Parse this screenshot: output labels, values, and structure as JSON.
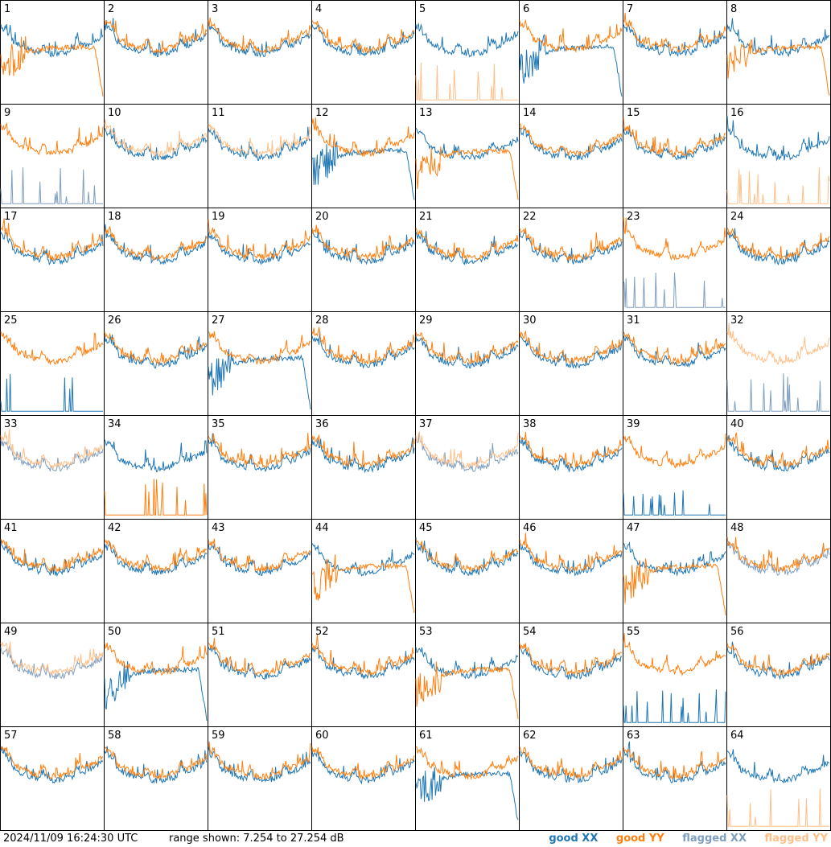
{
  "footer": {
    "timestamp": "2024/11/09 16:24:30 UTC",
    "range_text": "range shown: 7.254 to 27.254 dB"
  },
  "legend": [
    {
      "label": "good XX",
      "color": "#1f77b4"
    },
    {
      "label": "good YY",
      "color": "#ff7f0e"
    },
    {
      "label": "flagged XX",
      "color": "#7f9fbf"
    },
    {
      "label": "flagged YY",
      "color": "#ffbf88"
    }
  ],
  "chart_data": {
    "type": "line",
    "layout": "8x8 small multiples",
    "range_db": [
      7.254,
      27.254
    ],
    "panels": [
      {
        "id": 1,
        "xx": "good",
        "yy": "good",
        "xx_shape": "normal",
        "yy_shape": "decay"
      },
      {
        "id": 2,
        "xx": "good",
        "yy": "good",
        "xx_shape": "normal",
        "yy_shape": "normal"
      },
      {
        "id": 3,
        "xx": "good",
        "yy": "good",
        "xx_shape": "normal",
        "yy_shape": "normal"
      },
      {
        "id": 4,
        "xx": "good",
        "yy": "good",
        "xx_shape": "normal",
        "yy_shape": "normal"
      },
      {
        "id": 5,
        "xx": "good",
        "yy": "flagged",
        "xx_shape": "normal",
        "yy_shape": "spikes"
      },
      {
        "id": 6,
        "xx": "good",
        "yy": "good",
        "xx_shape": "decay",
        "yy_shape": "normal"
      },
      {
        "id": 7,
        "xx": "good",
        "yy": "good",
        "xx_shape": "normal",
        "yy_shape": "normal"
      },
      {
        "id": 8,
        "xx": "good",
        "yy": "good",
        "xx_shape": "normal",
        "yy_shape": "decay"
      },
      {
        "id": 9,
        "xx": "flagged",
        "yy": "good",
        "xx_shape": "spikes",
        "yy_shape": "normal"
      },
      {
        "id": 10,
        "xx": "good",
        "yy": "flagged",
        "xx_shape": "normal",
        "yy_shape": "normal"
      },
      {
        "id": 11,
        "xx": "good",
        "yy": "flagged",
        "xx_shape": "normal",
        "yy_shape": "normal"
      },
      {
        "id": 12,
        "xx": "good",
        "yy": "good",
        "xx_shape": "decay",
        "yy_shape": "normal"
      },
      {
        "id": 13,
        "xx": "good",
        "yy": "good",
        "xx_shape": "normal",
        "yy_shape": "decay"
      },
      {
        "id": 14,
        "xx": "good",
        "yy": "good",
        "xx_shape": "normal",
        "yy_shape": "normal"
      },
      {
        "id": 15,
        "xx": "good",
        "yy": "good",
        "xx_shape": "normal",
        "yy_shape": "normal"
      },
      {
        "id": 16,
        "xx": "good",
        "yy": "flagged",
        "xx_shape": "normal",
        "yy_shape": "spikes"
      },
      {
        "id": 17,
        "xx": "good",
        "yy": "good",
        "xx_shape": "normal",
        "yy_shape": "normal"
      },
      {
        "id": 18,
        "xx": "good",
        "yy": "good",
        "xx_shape": "normal",
        "yy_shape": "normal"
      },
      {
        "id": 19,
        "xx": "good",
        "yy": "good",
        "xx_shape": "normal",
        "yy_shape": "normal"
      },
      {
        "id": 20,
        "xx": "good",
        "yy": "good",
        "xx_shape": "normal",
        "yy_shape": "normal"
      },
      {
        "id": 21,
        "xx": "good",
        "yy": "good",
        "xx_shape": "normal",
        "yy_shape": "normal"
      },
      {
        "id": 22,
        "xx": "good",
        "yy": "good",
        "xx_shape": "normal",
        "yy_shape": "normal"
      },
      {
        "id": 23,
        "xx": "flagged",
        "yy": "good",
        "xx_shape": "spikes",
        "yy_shape": "normal"
      },
      {
        "id": 24,
        "xx": "good",
        "yy": "good",
        "xx_shape": "normal",
        "yy_shape": "normal"
      },
      {
        "id": 25,
        "xx": "good",
        "yy": "good",
        "xx_shape": "spikes",
        "yy_shape": "normal"
      },
      {
        "id": 26,
        "xx": "good",
        "yy": "good",
        "xx_shape": "normal",
        "yy_shape": "normal"
      },
      {
        "id": 27,
        "xx": "good",
        "yy": "good",
        "xx_shape": "decay",
        "yy_shape": "normal"
      },
      {
        "id": 28,
        "xx": "good",
        "yy": "good",
        "xx_shape": "normal",
        "yy_shape": "normal"
      },
      {
        "id": 29,
        "xx": "good",
        "yy": "good",
        "xx_shape": "normal",
        "yy_shape": "normal"
      },
      {
        "id": 30,
        "xx": "good",
        "yy": "good",
        "xx_shape": "normal",
        "yy_shape": "normal"
      },
      {
        "id": 31,
        "xx": "good",
        "yy": "good",
        "xx_shape": "normal",
        "yy_shape": "normal"
      },
      {
        "id": 32,
        "xx": "flagged",
        "yy": "flagged",
        "xx_shape": "spikes",
        "yy_shape": "normal"
      },
      {
        "id": 33,
        "xx": "flagged",
        "yy": "flagged",
        "xx_shape": "normal",
        "yy_shape": "normal"
      },
      {
        "id": 34,
        "xx": "good",
        "yy": "good",
        "xx_shape": "normal",
        "yy_shape": "spikes"
      },
      {
        "id": 35,
        "xx": "good",
        "yy": "good",
        "xx_shape": "normal",
        "yy_shape": "normal"
      },
      {
        "id": 36,
        "xx": "good",
        "yy": "good",
        "xx_shape": "normal",
        "yy_shape": "normal"
      },
      {
        "id": 37,
        "xx": "flagged",
        "yy": "flagged",
        "xx_shape": "normal",
        "yy_shape": "normal"
      },
      {
        "id": 38,
        "xx": "good",
        "yy": "good",
        "xx_shape": "normal",
        "yy_shape": "normal"
      },
      {
        "id": 39,
        "xx": "good",
        "yy": "good",
        "xx_shape": "spikes",
        "yy_shape": "normal"
      },
      {
        "id": 40,
        "xx": "good",
        "yy": "good",
        "xx_shape": "normal",
        "yy_shape": "normal"
      },
      {
        "id": 41,
        "xx": "good",
        "yy": "good",
        "xx_shape": "normal",
        "yy_shape": "normal"
      },
      {
        "id": 42,
        "xx": "good",
        "yy": "good",
        "xx_shape": "normal",
        "yy_shape": "normal"
      },
      {
        "id": 43,
        "xx": "good",
        "yy": "good",
        "xx_shape": "normal",
        "yy_shape": "normal"
      },
      {
        "id": 44,
        "xx": "good",
        "yy": "good",
        "xx_shape": "normal",
        "yy_shape": "decay"
      },
      {
        "id": 45,
        "xx": "good",
        "yy": "good",
        "xx_shape": "normal",
        "yy_shape": "normal"
      },
      {
        "id": 46,
        "xx": "good",
        "yy": "good",
        "xx_shape": "normal",
        "yy_shape": "normal"
      },
      {
        "id": 47,
        "xx": "good",
        "yy": "good",
        "xx_shape": "normal",
        "yy_shape": "decay"
      },
      {
        "id": 48,
        "xx": "flagged",
        "yy": "good",
        "xx_shape": "normal",
        "yy_shape": "normal"
      },
      {
        "id": 49,
        "xx": "flagged",
        "yy": "flagged",
        "xx_shape": "normal",
        "yy_shape": "normal"
      },
      {
        "id": 50,
        "xx": "good",
        "yy": "good",
        "xx_shape": "decay",
        "yy_shape": "normal"
      },
      {
        "id": 51,
        "xx": "good",
        "yy": "good",
        "xx_shape": "normal",
        "yy_shape": "normal"
      },
      {
        "id": 52,
        "xx": "good",
        "yy": "good",
        "xx_shape": "normal",
        "yy_shape": "normal"
      },
      {
        "id": 53,
        "xx": "good",
        "yy": "good",
        "xx_shape": "normal",
        "yy_shape": "decay"
      },
      {
        "id": 54,
        "xx": "good",
        "yy": "good",
        "xx_shape": "normal",
        "yy_shape": "normal"
      },
      {
        "id": 55,
        "xx": "good",
        "yy": "good",
        "xx_shape": "spikes",
        "yy_shape": "normal"
      },
      {
        "id": 56,
        "xx": "good",
        "yy": "good",
        "xx_shape": "normal",
        "yy_shape": "normal"
      },
      {
        "id": 57,
        "xx": "good",
        "yy": "good",
        "xx_shape": "normal",
        "yy_shape": "normal"
      },
      {
        "id": 58,
        "xx": "good",
        "yy": "good",
        "xx_shape": "normal",
        "yy_shape": "normal"
      },
      {
        "id": 59,
        "xx": "good",
        "yy": "good",
        "xx_shape": "normal",
        "yy_shape": "normal"
      },
      {
        "id": 60,
        "xx": "good",
        "yy": "good",
        "xx_shape": "normal",
        "yy_shape": "normal"
      },
      {
        "id": 61,
        "xx": "good",
        "yy": "good",
        "xx_shape": "decay",
        "yy_shape": "normal"
      },
      {
        "id": 62,
        "xx": "good",
        "yy": "good",
        "xx_shape": "normal",
        "yy_shape": "normal"
      },
      {
        "id": 63,
        "xx": "good",
        "yy": "good",
        "xx_shape": "normal",
        "yy_shape": "normal"
      },
      {
        "id": 64,
        "xx": "good",
        "yy": "flagged",
        "xx_shape": "normal",
        "yy_shape": "spikes"
      }
    ]
  }
}
